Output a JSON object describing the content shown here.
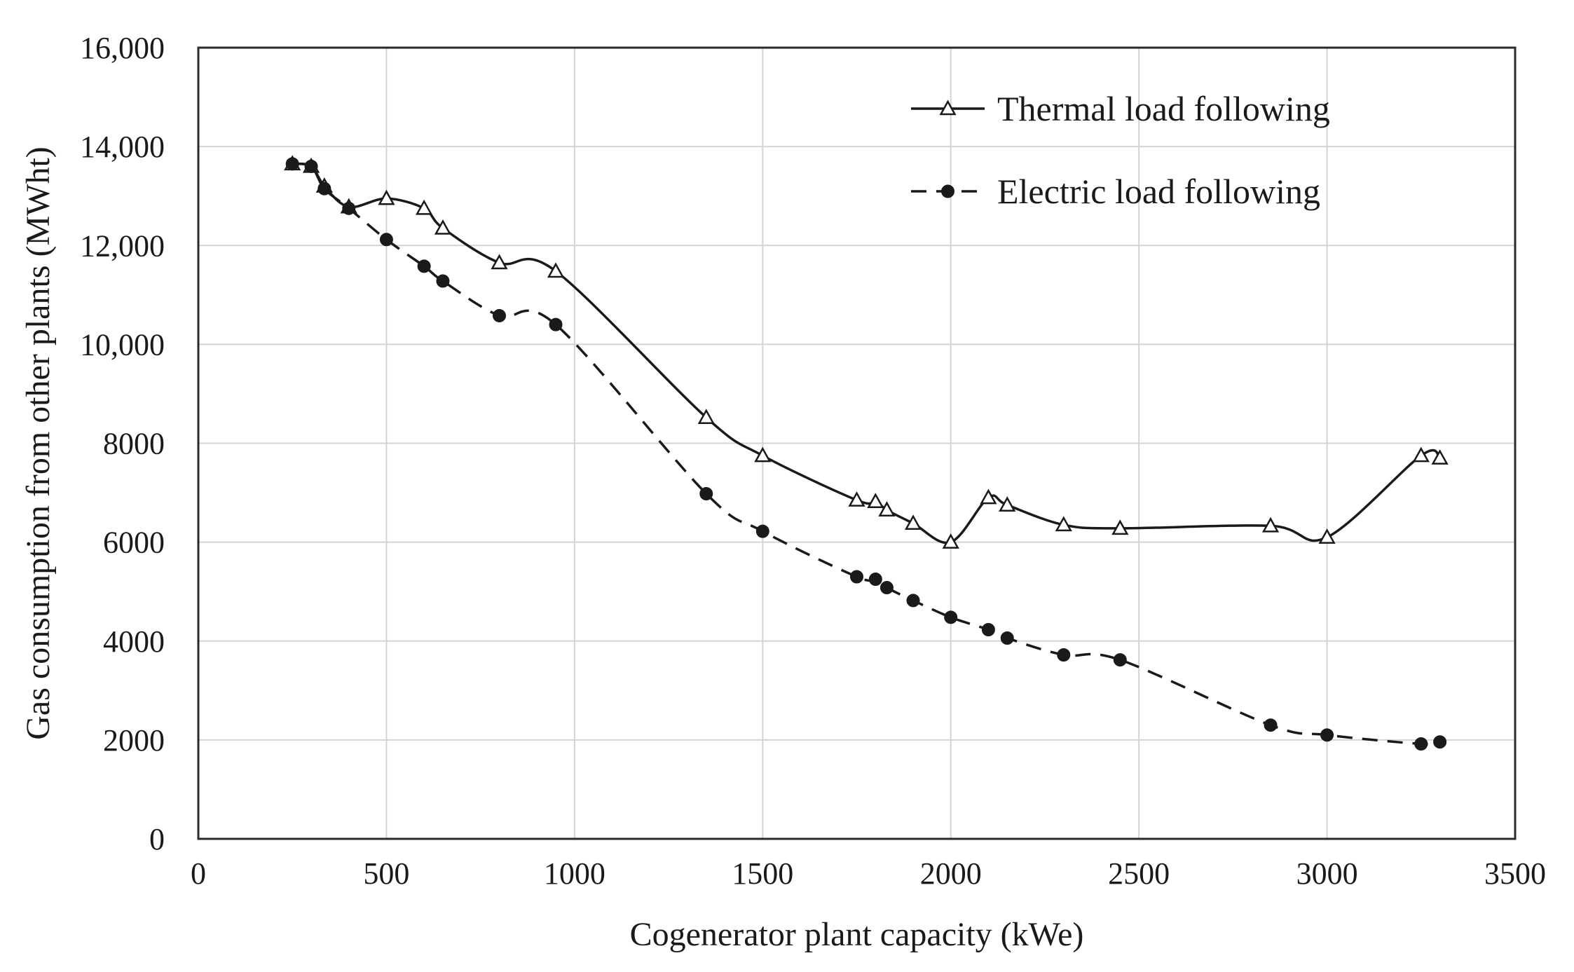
{
  "chart_data": {
    "type": "line",
    "title": "",
    "xlabel": "Cogenerator plant capacity (kWe)",
    "ylabel": "Gas consumption from other plants (MWht)",
    "xlim": [
      0,
      3500
    ],
    "ylim": [
      0,
      16000
    ],
    "grid": true,
    "legend_position": "top-right",
    "x_ticks": [
      {
        "value": 0,
        "label": "0"
      },
      {
        "value": 500,
        "label": "500"
      },
      {
        "value": 1000,
        "label": "1000"
      },
      {
        "value": 1500,
        "label": "1500"
      },
      {
        "value": 2000,
        "label": "2000"
      },
      {
        "value": 2500,
        "label": "2500"
      },
      {
        "value": 3000,
        "label": "3000"
      },
      {
        "value": 3500,
        "label": "3500"
      }
    ],
    "y_ticks": [
      {
        "value": 0,
        "label": "0"
      },
      {
        "value": 2000,
        "label": "2000"
      },
      {
        "value": 4000,
        "label": "4000"
      },
      {
        "value": 6000,
        "label": "6000"
      },
      {
        "value": 8000,
        "label": "8000"
      },
      {
        "value": 10000,
        "label": "10,000"
      },
      {
        "value": 12000,
        "label": "12,000"
      },
      {
        "value": 14000,
        "label": "14,000"
      },
      {
        "value": 16000,
        "label": "16,000"
      }
    ],
    "series": [
      {
        "name": "Thermal load following",
        "line_style": "solid",
        "marker": "triangle-open",
        "color": "#1a1a1a",
        "points": [
          {
            "x": 250,
            "y": 13650
          },
          {
            "x": 300,
            "y": 13600
          },
          {
            "x": 335,
            "y": 13200
          },
          {
            "x": 400,
            "y": 12780
          },
          {
            "x": 500,
            "y": 12950
          },
          {
            "x": 600,
            "y": 12750
          },
          {
            "x": 650,
            "y": 12350
          },
          {
            "x": 800,
            "y": 11650
          },
          {
            "x": 950,
            "y": 11480
          },
          {
            "x": 1350,
            "y": 8520
          },
          {
            "x": 1500,
            "y": 7750
          },
          {
            "x": 1750,
            "y": 6850
          },
          {
            "x": 1800,
            "y": 6820
          },
          {
            "x": 1830,
            "y": 6650
          },
          {
            "x": 1900,
            "y": 6380
          },
          {
            "x": 2000,
            "y": 6000
          },
          {
            "x": 2100,
            "y": 6900
          },
          {
            "x": 2150,
            "y": 6750
          },
          {
            "x": 2300,
            "y": 6350
          },
          {
            "x": 2450,
            "y": 6280
          },
          {
            "x": 2850,
            "y": 6330
          },
          {
            "x": 3000,
            "y": 6100
          },
          {
            "x": 3250,
            "y": 7750
          },
          {
            "x": 3300,
            "y": 7700
          }
        ]
      },
      {
        "name": "Electric load following",
        "line_style": "dashed",
        "marker": "circle-filled",
        "color": "#1a1a1a",
        "points": [
          {
            "x": 250,
            "y": 13650
          },
          {
            "x": 300,
            "y": 13600
          },
          {
            "x": 335,
            "y": 13150
          },
          {
            "x": 400,
            "y": 12750
          },
          {
            "x": 500,
            "y": 12120
          },
          {
            "x": 600,
            "y": 11580
          },
          {
            "x": 650,
            "y": 11280
          },
          {
            "x": 800,
            "y": 10580
          },
          {
            "x": 950,
            "y": 10400
          },
          {
            "x": 1350,
            "y": 6980
          },
          {
            "x": 1500,
            "y": 6220
          },
          {
            "x": 1750,
            "y": 5300
          },
          {
            "x": 1800,
            "y": 5250
          },
          {
            "x": 1830,
            "y": 5080
          },
          {
            "x": 1900,
            "y": 4820
          },
          {
            "x": 2000,
            "y": 4480
          },
          {
            "x": 2100,
            "y": 4230
          },
          {
            "x": 2150,
            "y": 4060
          },
          {
            "x": 2300,
            "y": 3720
          },
          {
            "x": 2450,
            "y": 3620
          },
          {
            "x": 2850,
            "y": 2300
          },
          {
            "x": 3000,
            "y": 2100
          },
          {
            "x": 3250,
            "y": 1920
          },
          {
            "x": 3300,
            "y": 1960
          }
        ]
      }
    ]
  }
}
